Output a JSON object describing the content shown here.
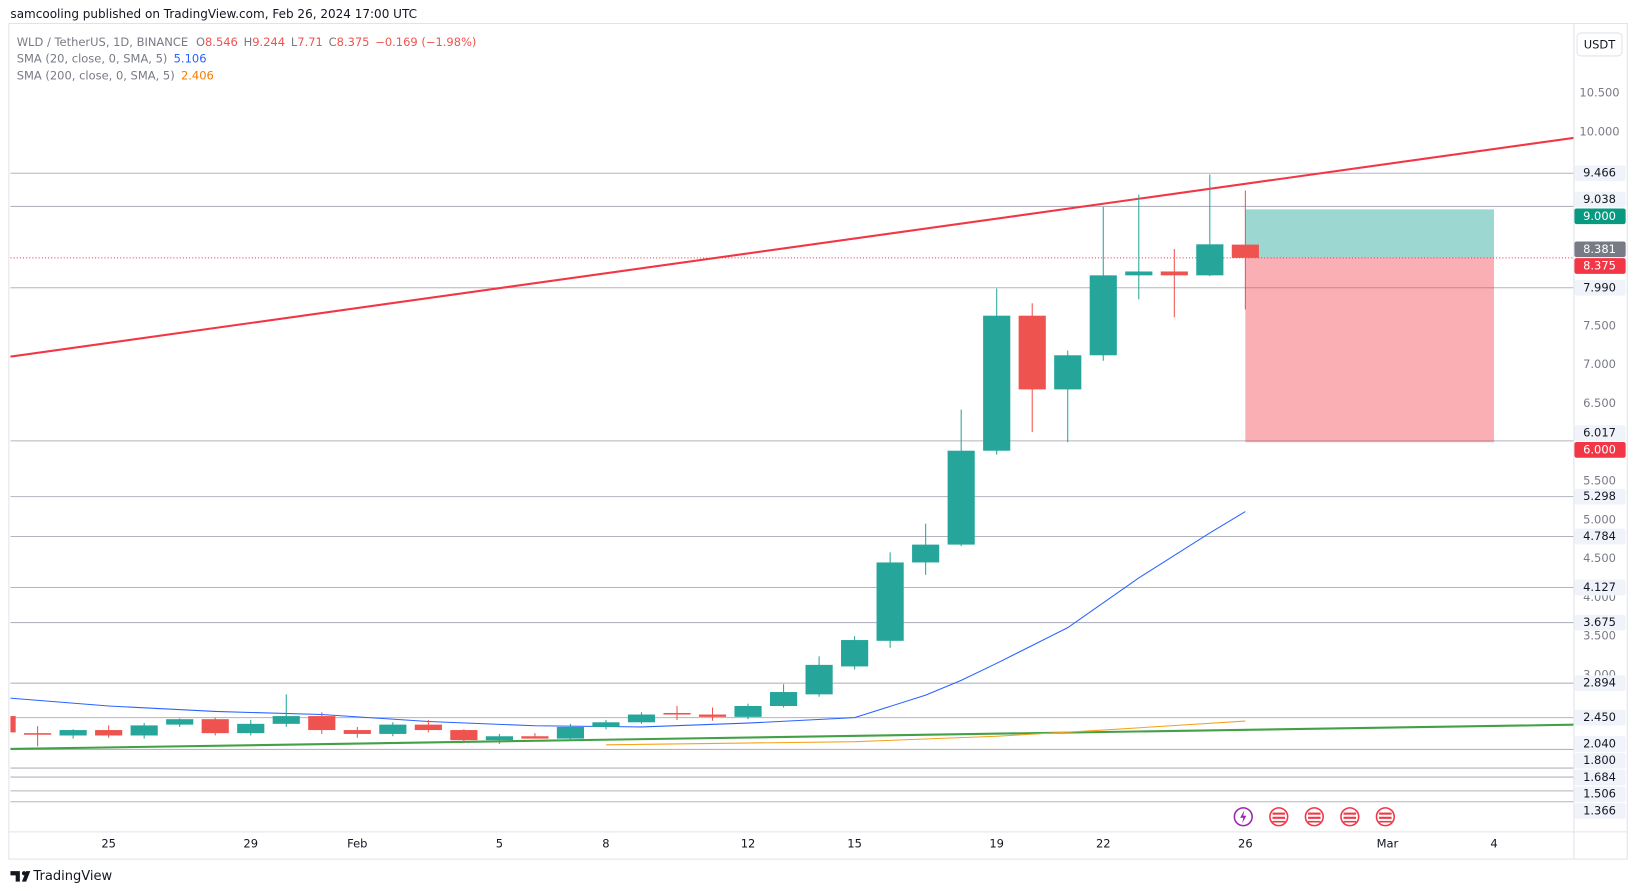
{
  "header": "samcooling published on TradingView.com, Feb 26, 2024 17:00 UTC",
  "brand": "TradingView",
  "currency_button": "USDT",
  "chart_data": {
    "type": "candlestick",
    "symbol": "WLD / TetherUS, 1D, BINANCE",
    "ohlc_letters": [
      "O",
      "H",
      "L",
      "C"
    ],
    "change": "−0.169 (−1.98%)",
    "up_color": "#26a69a",
    "down_color": "#ef5350",
    "x": [
      "2024-01-22",
      "2024-01-23",
      "2024-01-24",
      "2024-01-25",
      "2024-01-26",
      "2024-01-27",
      "2024-01-28",
      "2024-01-29",
      "2024-01-30",
      "2024-01-31",
      "2024-02-01",
      "2024-02-02",
      "2024-02-03",
      "2024-02-04",
      "2024-02-05",
      "2024-02-06",
      "2024-02-07",
      "2024-02-08",
      "2024-02-09",
      "2024-02-10",
      "2024-02-11",
      "2024-02-12",
      "2024-02-13",
      "2024-02-14",
      "2024-02-15",
      "2024-02-16",
      "2024-02-17",
      "2024-02-18",
      "2024-02-19",
      "2024-02-20",
      "2024-02-21",
      "2024-02-22",
      "2024-02-23",
      "2024-02-24",
      "2024-02-25",
      "2024-02-26"
    ],
    "open": [
      2.47,
      2.25,
      2.22,
      2.29,
      2.22,
      2.36,
      2.43,
      2.25,
      2.37,
      2.47,
      2.29,
      2.24,
      2.36,
      2.29,
      2.16,
      2.21,
      2.18,
      2.33,
      2.39,
      2.51,
      2.49,
      2.46,
      2.6,
      2.75,
      3.11,
      3.44,
      4.45,
      4.68,
      5.89,
      7.63,
      6.68,
      7.12,
      8.15,
      8.2,
      8.15,
      8.546
    ],
    "high": [
      2.5,
      2.34,
      2.3,
      2.35,
      2.38,
      2.44,
      2.45,
      2.42,
      2.75,
      2.52,
      2.33,
      2.39,
      2.42,
      2.3,
      2.24,
      2.25,
      2.37,
      2.42,
      2.52,
      2.6,
      2.58,
      2.63,
      2.88,
      3.24,
      3.5,
      4.58,
      4.95,
      6.42,
      7.98,
      7.79,
      7.18,
      9.03,
      9.19,
      8.49,
      9.45,
      9.244
    ],
    "low": [
      2.25,
      2.08,
      2.18,
      2.19,
      2.18,
      2.33,
      2.22,
      2.22,
      2.33,
      2.24,
      2.19,
      2.21,
      2.26,
      2.12,
      2.11,
      2.18,
      2.17,
      2.3,
      2.37,
      2.42,
      2.41,
      2.43,
      2.58,
      2.72,
      3.07,
      3.35,
      4.29,
      4.66,
      5.84,
      6.13,
      6.0,
      7.05,
      7.84,
      7.61,
      8.14,
      7.71
    ],
    "close": [
      2.26,
      2.23,
      2.29,
      2.22,
      2.35,
      2.43,
      2.25,
      2.37,
      2.47,
      2.29,
      2.24,
      2.36,
      2.29,
      2.16,
      2.21,
      2.18,
      2.33,
      2.39,
      2.49,
      2.49,
      2.46,
      2.6,
      2.78,
      3.13,
      3.45,
      4.45,
      4.68,
      5.89,
      7.63,
      6.68,
      7.12,
      8.15,
      8.2,
      8.15,
      8.55,
      8.375
    ],
    "series": [
      {
        "name": "SMA (20, close, 0, SMA, 5)",
        "color": "#2962ff",
        "x": [
          "2024-01-22",
          "2024-01-25",
          "2024-01-28",
          "2024-01-31",
          "2024-02-03",
          "2024-02-06",
          "2024-02-09",
          "2024-02-12",
          "2024-02-15",
          "2024-02-17",
          "2024-02-18",
          "2024-02-19",
          "2024-02-20",
          "2024-02-21",
          "2024-02-22",
          "2024-02-23",
          "2024-02-24",
          "2024-02-25",
          "2024-02-26"
        ],
        "values": [
          2.71,
          2.6,
          2.53,
          2.49,
          2.4,
          2.345,
          2.33,
          2.38,
          2.45,
          2.74,
          2.93,
          3.15,
          3.38,
          3.61,
          3.93,
          4.25,
          4.54,
          4.83,
          5.106
        ]
      },
      {
        "name": "SMA (200, close, 0, SMA, 5)",
        "color": "#f7a21b",
        "x": [
          "2024-02-08",
          "2024-02-15",
          "2024-02-19",
          "2024-02-22",
          "2024-02-26"
        ],
        "values": [
          2.1,
          2.14,
          2.21,
          2.29,
          2.406
        ]
      }
    ],
    "trendlines": [
      {
        "color": "#f23645",
        "x": [
          "2024-01-22",
          "2024-03-07"
        ],
        "values": [
          7.088,
          9.97
        ]
      },
      {
        "color": "#43a047",
        "x": [
          "2024-01-22",
          "2024-03-07"
        ],
        "values": [
          2.045,
          2.364
        ]
      }
    ],
    "hlines": [
      {
        "value": 9.466,
        "label": "9.466"
      },
      {
        "value": 9.038,
        "label": "9.038"
      },
      {
        "value": 7.99,
        "label": "7.990"
      },
      {
        "value": 6.017,
        "label": "6.017"
      },
      {
        "value": 5.298,
        "label": "5.298"
      },
      {
        "value": 4.784,
        "label": "4.784"
      },
      {
        "value": 4.127,
        "label": "4.127"
      },
      {
        "value": 3.675,
        "label": "3.675"
      },
      {
        "value": 2.894,
        "label": "2.894"
      },
      {
        "value": 2.45,
        "label": "2.450"
      },
      {
        "value": 2.04,
        "label": "2.040"
      },
      {
        "value": 1.8,
        "label": "1.800"
      },
      {
        "value": 1.684,
        "label": "1.684"
      },
      {
        "value": 1.506,
        "label": "1.506"
      },
      {
        "value": 1.366,
        "label": "1.366"
      }
    ],
    "position": {
      "start": "2024-02-26",
      "end": "2024-03-04",
      "entry": {
        "value": 8.381,
        "label": "8.381"
      },
      "target": {
        "value": 9.0,
        "label": "9.000"
      },
      "stop": {
        "value": 6.0,
        "label": "6.000"
      }
    },
    "last_price": {
      "value": 8.375,
      "label": "8.375"
    },
    "ylim": [
      0.984,
      11.402
    ],
    "yticks": [
      {
        "value": 10.5,
        "label": "10.500"
      },
      {
        "value": 10,
        "label": "10.000"
      },
      {
        "value": 7.5,
        "label": "7.500"
      },
      {
        "value": 7,
        "label": "7.000"
      },
      {
        "value": 6.5,
        "label": "6.500"
      },
      {
        "value": 5.5,
        "label": "5.500"
      },
      {
        "value": 5,
        "label": "5.000"
      },
      {
        "value": 4.5,
        "label": "4.500"
      },
      {
        "value": 4,
        "label": "4.000"
      },
      {
        "value": 3.5,
        "label": "3.500"
      },
      {
        "value": 3,
        "label": "3.000"
      }
    ],
    "xticks": [
      {
        "value": "2024-01-25",
        "label": "25"
      },
      {
        "value": "2024-01-29",
        "label": "29"
      },
      {
        "value": "2024-02-01",
        "label": "Feb"
      },
      {
        "value": "2024-02-05",
        "label": "5"
      },
      {
        "value": "2024-02-08",
        "label": "8"
      },
      {
        "value": "2024-02-12",
        "label": "12"
      },
      {
        "value": "2024-02-15",
        "label": "15"
      },
      {
        "value": "2024-02-19",
        "label": "19"
      },
      {
        "value": "2024-02-22",
        "label": "22"
      },
      {
        "value": "2024-02-26",
        "label": "26"
      },
      {
        "value": "2024-03-01",
        "label": "Mar"
      },
      {
        "value": "2024-03-04",
        "label": "4"
      }
    ],
    "grid": false
  }
}
